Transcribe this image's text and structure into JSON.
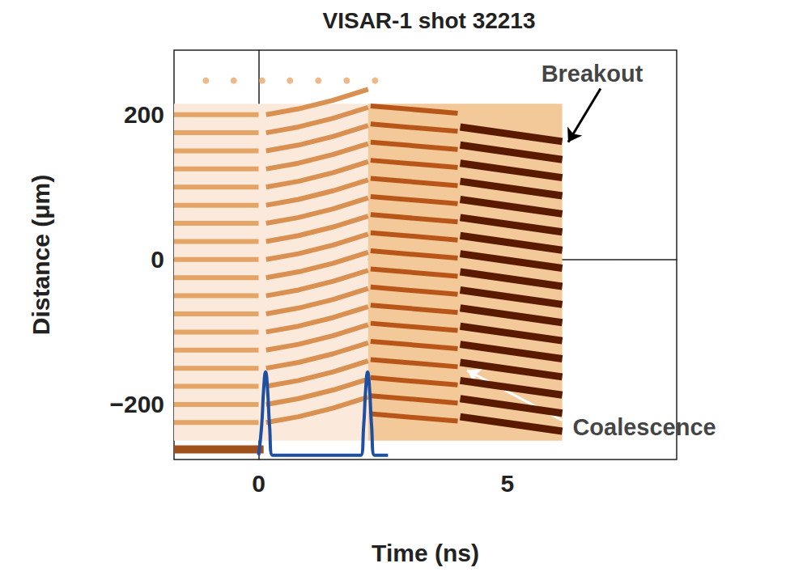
{
  "chart_data": {
    "type": "streak",
    "title": "VISAR-1 shot 32213",
    "x_label": "Time (ns)",
    "y_label": "Distance (μm)",
    "xlim": [
      -1.7,
      8.4
    ],
    "ylim": [
      -276,
      289
    ],
    "xticks": [
      0,
      5
    ],
    "yticks": [
      {
        "value": -200,
        "label": "−200"
      },
      0,
      200
    ],
    "grid": false,
    "shading": [
      {
        "x": [
          -1.7,
          2.2
        ],
        "y": [
          -250,
          215
        ],
        "color": "#fbeadb"
      },
      {
        "x": [
          2.2,
          6.1
        ],
        "y": [
          -250,
          215
        ],
        "color": "#f3c99a"
      }
    ],
    "fringes": [
      {
        "color": "#e3a466",
        "points": [
          [
            -1.7,
            -225
          ],
          [
            0,
            -225
          ],
          null,
          [
            -1.7,
            -200
          ],
          [
            0,
            -200
          ],
          null,
          [
            -1.7,
            -175
          ],
          [
            0,
            -175
          ],
          null,
          [
            -1.7,
            -150
          ],
          [
            0,
            -150
          ],
          null,
          [
            -1.7,
            -125
          ],
          [
            0,
            -125
          ],
          null,
          [
            -1.7,
            -100
          ],
          [
            0,
            -100
          ],
          null,
          [
            -1.7,
            -75
          ],
          [
            0,
            -75
          ],
          null,
          [
            -1.7,
            -50
          ],
          [
            0,
            -50
          ],
          null,
          [
            -1.7,
            -25
          ],
          [
            0,
            -25
          ],
          null,
          [
            -1.7,
            0
          ],
          [
            0,
            0
          ],
          null,
          [
            -1.7,
            25
          ],
          [
            0,
            25
          ],
          null,
          [
            -1.7,
            50
          ],
          [
            0,
            50
          ],
          null,
          [
            -1.7,
            75
          ],
          [
            0,
            75
          ],
          null,
          [
            -1.7,
            100
          ],
          [
            0,
            100
          ],
          null,
          [
            -1.7,
            125
          ],
          [
            0,
            125
          ],
          null,
          [
            -1.7,
            150
          ],
          [
            0,
            150
          ],
          null,
          [
            -1.7,
            175
          ],
          [
            0,
            175
          ],
          null,
          [
            -1.7,
            200
          ],
          [
            0,
            200
          ]
        ]
      },
      {
        "color": "#d99050",
        "points": [
          [
            0.15,
            -225
          ],
          [
            0.8,
            -217
          ],
          [
            1.5,
            -205
          ],
          [
            2.2,
            -190
          ],
          null,
          [
            0.15,
            -200
          ],
          [
            0.8,
            -192
          ],
          [
            1.5,
            -180
          ],
          [
            2.2,
            -165
          ],
          null,
          [
            0.15,
            -175
          ],
          [
            0.8,
            -167
          ],
          [
            1.5,
            -155
          ],
          [
            2.2,
            -140
          ],
          null,
          [
            0.15,
            -150
          ],
          [
            0.8,
            -142
          ],
          [
            1.5,
            -130
          ],
          [
            2.2,
            -115
          ],
          null,
          [
            0.15,
            -125
          ],
          [
            0.8,
            -117
          ],
          [
            1.5,
            -105
          ],
          [
            2.2,
            -90
          ],
          null,
          [
            0.15,
            -100
          ],
          [
            0.8,
            -92
          ],
          [
            1.5,
            -80
          ],
          [
            2.2,
            -65
          ],
          null,
          [
            0.15,
            -75
          ],
          [
            0.8,
            -67
          ],
          [
            1.5,
            -55
          ],
          [
            2.2,
            -40
          ],
          null,
          [
            0.15,
            -50
          ],
          [
            0.8,
            -42
          ],
          [
            1.5,
            -30
          ],
          [
            2.2,
            -15
          ],
          null,
          [
            0.15,
            -25
          ],
          [
            0.8,
            -17
          ],
          [
            1.5,
            -5
          ],
          [
            2.2,
            10
          ],
          null,
          [
            0.15,
            0
          ],
          [
            0.8,
            8
          ],
          [
            1.5,
            20
          ],
          [
            2.2,
            35
          ],
          null,
          [
            0.15,
            25
          ],
          [
            0.8,
            33
          ],
          [
            1.5,
            45
          ],
          [
            2.2,
            60
          ],
          null,
          [
            0.15,
            50
          ],
          [
            0.8,
            58
          ],
          [
            1.5,
            70
          ],
          [
            2.2,
            85
          ],
          null,
          [
            0.15,
            75
          ],
          [
            0.8,
            83
          ],
          [
            1.5,
            95
          ],
          [
            2.2,
            110
          ],
          null,
          [
            0.15,
            100
          ],
          [
            0.8,
            108
          ],
          [
            1.5,
            120
          ],
          [
            2.2,
            135
          ],
          null,
          [
            0.15,
            125
          ],
          [
            0.8,
            133
          ],
          [
            1.5,
            145
          ],
          [
            2.2,
            160
          ],
          null,
          [
            0.15,
            150
          ],
          [
            0.8,
            158
          ],
          [
            1.5,
            170
          ],
          [
            2.2,
            185
          ],
          null,
          [
            0.15,
            175
          ],
          [
            0.8,
            183
          ],
          [
            1.5,
            195
          ],
          [
            2.2,
            210
          ],
          null,
          [
            0.15,
            200
          ],
          [
            0.8,
            208
          ],
          [
            1.5,
            220
          ],
          [
            2.2,
            235
          ]
        ]
      },
      {
        "color": "#b8561a",
        "points": [
          [
            2.25,
            -213
          ],
          [
            4.0,
            -223
          ],
          null,
          [
            2.25,
            -188
          ],
          [
            4.0,
            -198
          ],
          null,
          [
            2.25,
            -163
          ],
          [
            4.0,
            -173
          ],
          null,
          [
            2.25,
            -138
          ],
          [
            4.0,
            -148
          ],
          null,
          [
            2.25,
            -113
          ],
          [
            4.0,
            -123
          ],
          null,
          [
            2.25,
            -88
          ],
          [
            4.0,
            -98
          ],
          null,
          [
            2.25,
            -63
          ],
          [
            4.0,
            -73
          ],
          null,
          [
            2.25,
            -38
          ],
          [
            4.0,
            -48
          ],
          null,
          [
            2.25,
            -13
          ],
          [
            4.0,
            -23
          ],
          null,
          [
            2.25,
            12
          ],
          [
            4.0,
            2
          ],
          null,
          [
            2.25,
            37
          ],
          [
            4.0,
            27
          ],
          null,
          [
            2.25,
            62
          ],
          [
            4.0,
            52
          ],
          null,
          [
            2.25,
            87
          ],
          [
            4.0,
            77
          ],
          null,
          [
            2.25,
            112
          ],
          [
            4.0,
            102
          ],
          null,
          [
            2.25,
            137
          ],
          [
            4.0,
            127
          ],
          null,
          [
            2.25,
            162
          ],
          [
            4.0,
            152
          ],
          null,
          [
            2.25,
            187
          ],
          [
            4.0,
            177
          ],
          null,
          [
            2.25,
            212
          ],
          [
            4.0,
            202
          ]
        ]
      },
      {
        "color": "#5a1a00",
        "points": [
          [
            4.05,
            -217
          ],
          [
            6.1,
            -237
          ],
          null,
          [
            4.05,
            -192
          ],
          [
            6.1,
            -212
          ],
          null,
          [
            4.05,
            -167
          ],
          [
            6.1,
            -187
          ],
          null,
          [
            4.05,
            -142
          ],
          [
            6.1,
            -162
          ],
          null,
          [
            4.05,
            -117
          ],
          [
            6.1,
            -137
          ],
          null,
          [
            4.05,
            -92
          ],
          [
            6.1,
            -112
          ],
          null,
          [
            4.05,
            -67
          ],
          [
            6.1,
            -87
          ],
          null,
          [
            4.05,
            -42
          ],
          [
            6.1,
            -62
          ],
          null,
          [
            4.05,
            -17
          ],
          [
            6.1,
            -37
          ],
          null,
          [
            4.05,
            8
          ],
          [
            6.1,
            -12
          ],
          null,
          [
            4.05,
            33
          ],
          [
            6.1,
            13
          ],
          null,
          [
            4.05,
            58
          ],
          [
            6.1,
            38
          ],
          null,
          [
            4.05,
            83
          ],
          [
            6.1,
            63
          ],
          null,
          [
            4.05,
            108
          ],
          [
            6.1,
            88
          ],
          null,
          [
            4.05,
            133
          ],
          [
            6.1,
            113
          ],
          null,
          [
            4.05,
            158
          ],
          [
            6.1,
            138
          ],
          null,
          [
            4.05,
            183
          ],
          [
            6.1,
            163
          ]
        ]
      }
    ],
    "reference_band": {
      "color": "#a0501a",
      "points": [
        [
          -1.7,
          -262
        ],
        [
          0.1,
          -262
        ]
      ]
    },
    "fiducials": {
      "color": "#e8a86a",
      "x": [
        -1.06,
        -0.5,
        0.07,
        0.63,
        1.2,
        1.77,
        2.34
      ],
      "y": [
        247,
        247,
        247,
        247,
        247,
        247,
        247
      ]
    },
    "series": [
      {
        "type": "line",
        "color": "#1f4fa0",
        "x": [
          0.0,
          0.06,
          0.1,
          0.14,
          0.18,
          0.22,
          0.28,
          2.05,
          2.11,
          2.15,
          2.19,
          2.23,
          2.27,
          2.33,
          2.6
        ],
        "values": [
          -270,
          -230,
          -180,
          -155,
          -180,
          -230,
          -270,
          -270,
          -230,
          -180,
          -155,
          -180,
          -230,
          -270,
          -270
        ]
      }
    ],
    "annotations": [
      {
        "text": "Breakout",
        "text_xy": [
          6.7,
          257
        ],
        "arrow_from": [
          6.87,
          236
        ],
        "xy": [
          6.22,
          162
        ],
        "color": "#000000"
      },
      {
        "text": "Coalescence",
        "text_xy": [
          7.75,
          -231
        ],
        "arrow_from": [
          6.1,
          -222
        ],
        "xy": [
          4.19,
          -153
        ],
        "color": "#ffffff"
      }
    ]
  }
}
